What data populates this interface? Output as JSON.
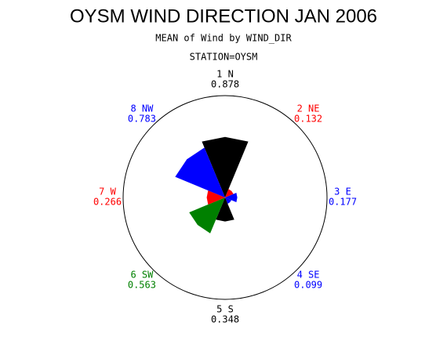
{
  "chart_data": {
    "type": "windrose",
    "title": "OYSM WIND DIRECTION JAN 2006",
    "subtitle": "MEAN of Wind by WIND_DIR",
    "caption": "STATION=OYSM",
    "categories": [
      "1 N",
      "2 NE",
      "3 E",
      "4 SE",
      "5 S",
      "6 SW",
      "7 W",
      "8 NW"
    ],
    "values": [
      0.878,
      0.132,
      0.177,
      0.099,
      0.348,
      0.563,
      0.266,
      0.783
    ],
    "colors": [
      "#000000",
      "#ff0000",
      "#0000ff",
      "#0000ff",
      "#000000",
      "#008000",
      "#ff0000",
      "#0000ff"
    ]
  }
}
